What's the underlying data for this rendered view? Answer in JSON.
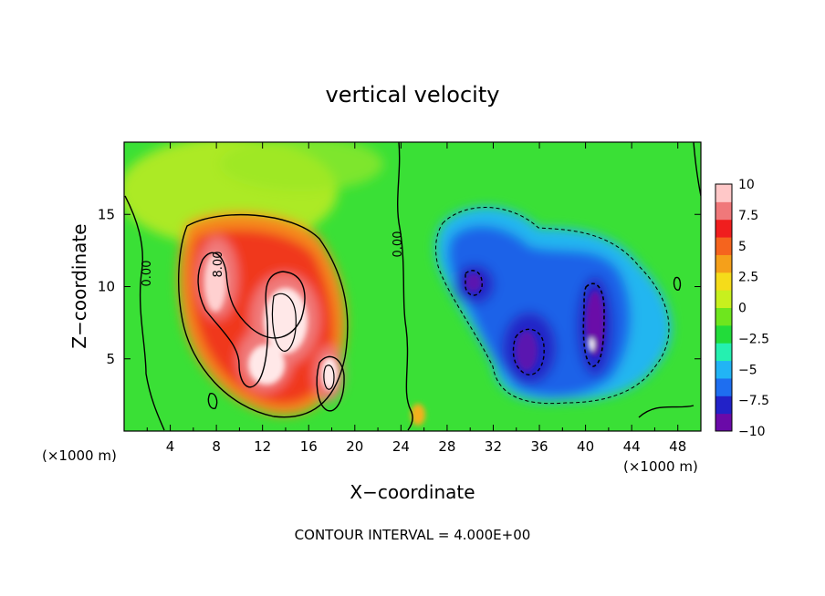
{
  "chart_data": {
    "type": "heatmap",
    "title": "vertical velocity",
    "xlabel": "X−coordinate",
    "ylabel": "Z−coordinate",
    "x_unit_left": "(×1000 m)",
    "x_unit_right": "(×1000 m)",
    "footer": "CONTOUR INTERVAL = 4.000E+00",
    "xlim": [
      0,
      50
    ],
    "ylim": [
      0,
      20
    ],
    "xticks": [
      4,
      8,
      12,
      16,
      20,
      24,
      28,
      32,
      36,
      40,
      44,
      48
    ],
    "xtick_labels": [
      "4",
      "8",
      "12",
      "16",
      "20",
      "24",
      "28",
      "32",
      "36",
      "40",
      "44",
      "48"
    ],
    "yticks": [
      5,
      10,
      15
    ],
    "ytick_labels": [
      "5",
      "10",
      "15"
    ],
    "colorbar": {
      "min": -10,
      "max": 10,
      "ticks": [
        10,
        7.5,
        5,
        2.5,
        0,
        -2.5,
        -5,
        -7.5,
        -10
      ],
      "tick_labels": [
        "10",
        "7.5",
        "5",
        "2.5",
        "0",
        "−2.5",
        "−5",
        "−7.5",
        "−10"
      ],
      "colors": [
        "#6a0aa8",
        "#2222c8",
        "#1e6ef0",
        "#22b4f5",
        "#25f0b0",
        "#22dc3a",
        "#6ee61e",
        "#c8f01e",
        "#f5dc1a",
        "#f5a01a",
        "#f5641e",
        "#f01e1e",
        "#f0787a",
        "#ffc8c8"
      ]
    },
    "contour_labels": [
      "0.00",
      "0.00",
      "8.00"
    ],
    "features": [
      {
        "kind": "updraft",
        "x": 8,
        "z": 10,
        "w": 9.5
      },
      {
        "kind": "updraft",
        "x": 13.5,
        "z": 8,
        "w": 10
      },
      {
        "kind": "updraft",
        "x": 12.5,
        "z": 4.5,
        "w": 9
      },
      {
        "kind": "updraft",
        "x": 18,
        "z": 4,
        "w": 10
      },
      {
        "kind": "updraft",
        "x": 25.5,
        "z": 1.2,
        "w": 4
      },
      {
        "kind": "downdraft",
        "x": 30.5,
        "z": 10.2,
        "w": -8
      },
      {
        "kind": "downdraft",
        "x": 34,
        "z": 5,
        "w": -8
      },
      {
        "kind": "downdraft",
        "x": 40.5,
        "z": 7.5,
        "w": -9
      }
    ]
  }
}
